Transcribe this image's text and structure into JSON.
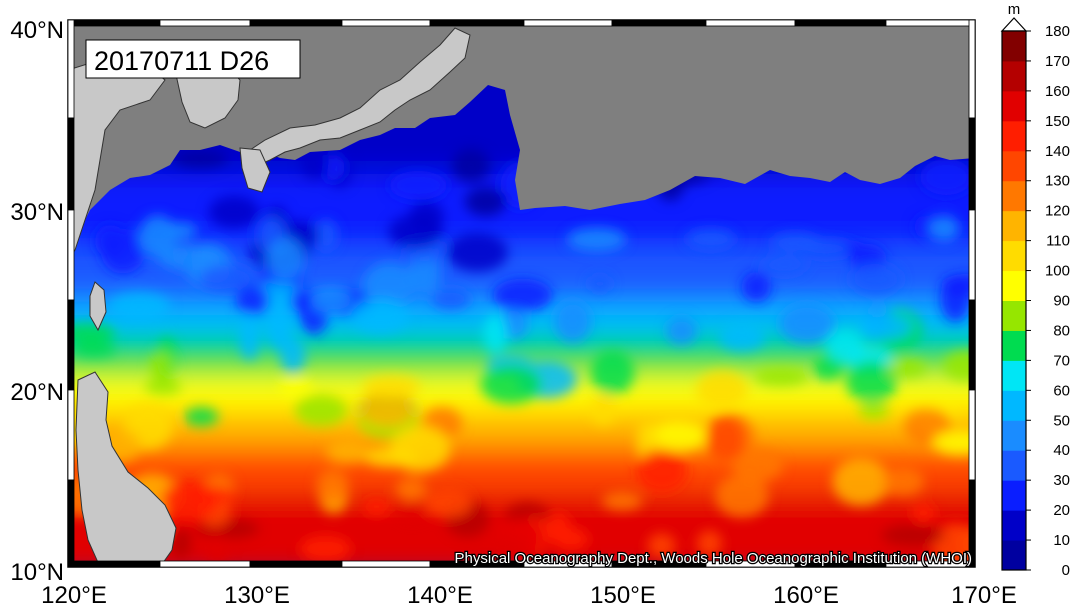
{
  "map": {
    "stamp": "20170711 D26",
    "credit": "Physical Oceanography Dept., Woods Hole Oceanographic Institution (WHOI)",
    "lat_labels": [
      "40°N",
      "30°N",
      "20°N",
      "10°N"
    ],
    "lon_labels": [
      "120°E",
      "130°E",
      "140°E",
      "150°E",
      "160°E",
      "170°E"
    ],
    "lat_range": [
      10,
      40
    ],
    "lon_range": [
      120,
      170
    ],
    "land_color": "#7f7f7f",
    "landmass_color": "#c8c8c8"
  },
  "colorbar": {
    "unit": "m",
    "ticks": [
      "180",
      "170",
      "160",
      "150",
      "140",
      "130",
      "120",
      "110",
      "100",
      "90",
      "80",
      "70",
      "60",
      "50",
      "40",
      "30",
      "20",
      "10",
      "0"
    ],
    "colors": [
      "#00006e",
      "#0000a0",
      "#0000c8",
      "#0a1eff",
      "#1a5aff",
      "#1a8cff",
      "#00b8ff",
      "#00e6f5",
      "#00dc50",
      "#96e600",
      "#ffff00",
      "#ffdc00",
      "#ffb400",
      "#ff7800",
      "#ff4600",
      "#ff1e00",
      "#e10000",
      "#b40000",
      "#820000",
      "#460000"
    ]
  },
  "chart_data": {
    "type": "heatmap",
    "title": "20170711 D26",
    "variable_unit": "m",
    "lat_range": [
      10,
      40
    ],
    "lon_range": [
      120,
      170
    ],
    "color_range": [
      0,
      180
    ],
    "bands_by_latitude": [
      {
        "lat": "30-35°N",
        "value_m": 20
      },
      {
        "lat": "25-30°N",
        "value_m": 30
      },
      {
        "lat": "22-25°N",
        "value_m": 50
      },
      {
        "lat": "19-22°N",
        "value_m": 75
      },
      {
        "lat": "16-19°N",
        "value_m": 105
      },
      {
        "lat": "10-16°N",
        "value_m": 145
      }
    ]
  }
}
